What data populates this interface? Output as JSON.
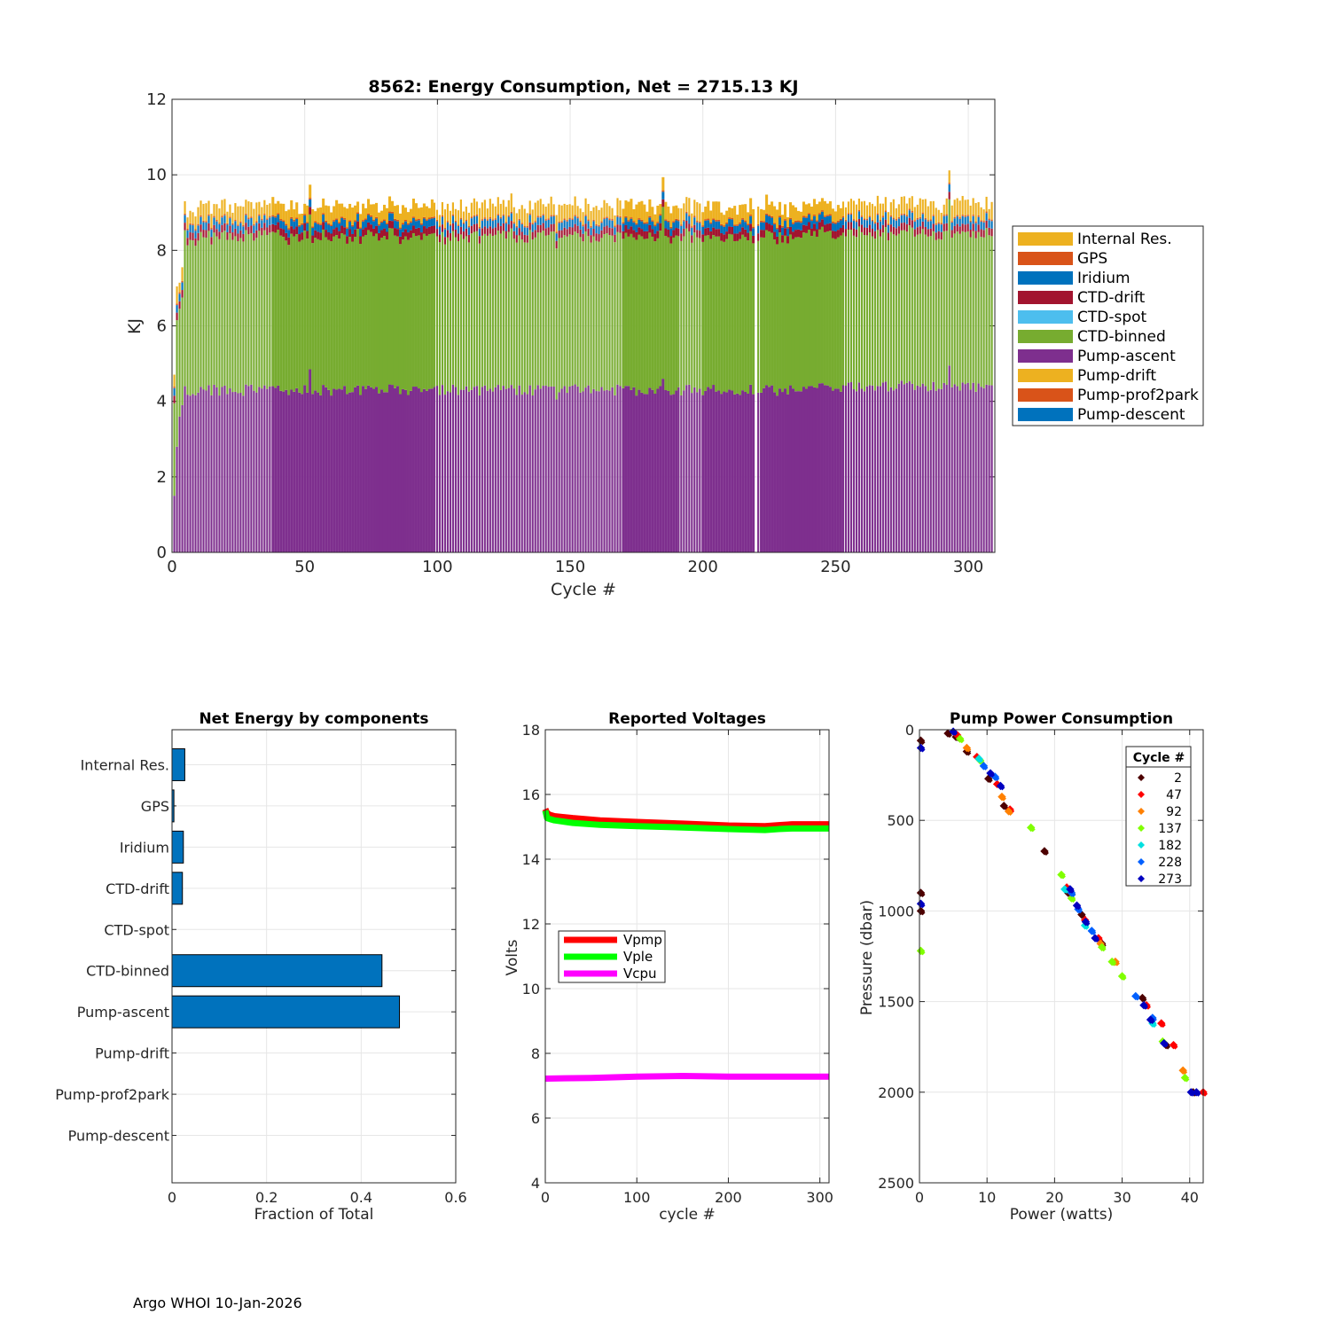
{
  "footer": "Argo WHOI 10-Jan-2026",
  "chart_data": [
    {
      "id": "energy",
      "type": "bar",
      "stacked": true,
      "title": "8562: Energy Consumption,  Net = 2715.13 KJ",
      "xlabel": "Cycle #",
      "ylabel": "KJ",
      "xlim": [
        0,
        310
      ],
      "ylim": [
        0,
        12
      ],
      "xticks": [
        0,
        50,
        100,
        150,
        200,
        250,
        300
      ],
      "yticks": [
        0,
        2,
        4,
        6,
        8,
        10,
        12
      ],
      "grid": true,
      "legend_position": "right",
      "n_cycles": 309,
      "series": [
        {
          "name": "Internal Res.",
          "color": "#EDB120",
          "typical": 0.3
        },
        {
          "name": "GPS",
          "color": "#D95319",
          "typical": 0.04
        },
        {
          "name": "Iridium",
          "color": "#0072BD",
          "typical": 0.2
        },
        {
          "name": "CTD-drift",
          "color": "#A2142F",
          "typical": 0.2
        },
        {
          "name": "CTD-spot",
          "color": "#4DBEEE",
          "typical": 0.0
        },
        {
          "name": "CTD-binned",
          "color": "#77AC30",
          "typical": 4.05
        },
        {
          "name": "Pump-ascent",
          "color": "#7E2F8E",
          "typical": 4.4
        },
        {
          "name": "Pump-drift",
          "color": "#EDB120",
          "typical": 0.0
        },
        {
          "name": "Pump-prof2park",
          "color": "#D95319",
          "typical": 0.0
        },
        {
          "name": "Pump-descent",
          "color": "#0072BD",
          "typical": 0.0
        }
      ],
      "highlights": [
        {
          "cycle": 1,
          "total": 4.7,
          "pump_ascent": 1.5
        },
        {
          "cycle": 2,
          "total": 6.9,
          "pump_ascent": 2.8
        },
        {
          "cycle": 3,
          "total": 7.2,
          "pump_ascent": 3.6
        },
        {
          "cycle": 4,
          "total": 7.5,
          "pump_ascent": 3.9
        },
        {
          "cycle": 52,
          "total": 9.7,
          "pump_ascent": 4.85
        },
        {
          "cycle": 145,
          "total": 8.8,
          "pump_ascent": 4.05
        },
        {
          "cycle": 185,
          "total": 9.9,
          "pump_ascent": 4.6
        },
        {
          "cycle": 293,
          "total": 10.1,
          "pump_ascent": 4.95
        }
      ]
    },
    {
      "id": "components",
      "type": "bar",
      "orientation": "horizontal",
      "title": "Net Energy by components",
      "xlabel": "Fraction of Total",
      "xlim": [
        0,
        0.6
      ],
      "xticks": [
        0,
        0.2,
        0.4,
        0.6
      ],
      "xtick_labels": [
        "0",
        "0.2",
        "0.4",
        "0.6"
      ],
      "categories": [
        "Internal Res.",
        "GPS",
        "Iridium",
        "CTD-drift",
        "CTD-spot",
        "CTD-binned",
        "Pump-ascent",
        "Pump-drift",
        "Pump-prof2park",
        "Pump-descent"
      ],
      "values": [
        0.027,
        0.004,
        0.024,
        0.022,
        0.0,
        0.444,
        0.481,
        0.0,
        0.0,
        0.0
      ],
      "bar_color": "#0072BD",
      "grid": true
    },
    {
      "id": "voltages",
      "type": "line",
      "title": "Reported Voltages",
      "xlabel": "cycle #",
      "ylabel": "Volts",
      "xlim": [
        0,
        310
      ],
      "ylim": [
        4,
        18
      ],
      "xticks": [
        0,
        100,
        200,
        300
      ],
      "yticks": [
        4,
        6,
        8,
        10,
        12,
        14,
        16,
        18
      ],
      "legend_position": "center-left",
      "grid": true,
      "series": [
        {
          "name": "Vpmp",
          "color": "#FF0000",
          "x": [
            0,
            2,
            5,
            10,
            30,
            60,
            100,
            150,
            200,
            240,
            255,
            270,
            300,
            310
          ],
          "y": [
            15.55,
            15.42,
            15.37,
            15.33,
            15.27,
            15.2,
            15.15,
            15.1,
            15.04,
            15.02,
            15.05,
            15.08,
            15.08,
            15.08
          ]
        },
        {
          "name": "Vple",
          "color": "#00FF00",
          "x": [
            0,
            2,
            5,
            10,
            30,
            60,
            100,
            150,
            200,
            240,
            255,
            270,
            300,
            310
          ],
          "y": [
            15.5,
            15.27,
            15.24,
            15.2,
            15.12,
            15.06,
            15.02,
            14.98,
            14.93,
            14.9,
            14.93,
            14.95,
            14.95,
            14.95
          ]
        },
        {
          "name": "Vcpu",
          "color": "#FF00FF",
          "x": [
            0,
            50,
            100,
            150,
            200,
            250,
            300,
            310
          ],
          "y": [
            7.22,
            7.24,
            7.28,
            7.3,
            7.28,
            7.28,
            7.28,
            7.28
          ]
        }
      ]
    },
    {
      "id": "pump",
      "type": "scatter",
      "title": "Pump Power Consumption",
      "xlabel": "Power (watts)",
      "ylabel": "Pressure (dbar)",
      "xlim": [
        0,
        42
      ],
      "ylim": [
        0,
        2500
      ],
      "y_reversed": true,
      "xticks": [
        0,
        10,
        20,
        30,
        40
      ],
      "yticks": [
        0,
        500,
        1000,
        1500,
        2000,
        2500
      ],
      "grid": true,
      "legend_title": "Cycle #",
      "legend_position": "top-right",
      "series": [
        {
          "name": "2",
          "color": "#4D0000",
          "x": [
            0.2,
            0.2,
            0.2,
            4.2,
            5.4,
            7.0,
            10.2,
            12.5,
            18.5,
            22.0,
            24.0,
            27.0,
            33.0,
            36.5,
            40.5
          ],
          "y": [
            60,
            900,
            1000,
            20,
            40,
            120,
            270,
            420,
            670,
            900,
            1020,
            1180,
            1480,
            1740,
            2000
          ]
        },
        {
          "name": "47",
          "color": "#FF0000",
          "x": [
            5.6,
            8.5,
            11.5,
            13.4,
            21.8,
            24.5,
            26.5,
            33.6,
            35.8,
            37.6,
            42.0
          ],
          "y": [
            30,
            150,
            300,
            440,
            870,
            1050,
            1150,
            1520,
            1620,
            1740,
            2000
          ]
        },
        {
          "name": "92",
          "color": "#FF8000",
          "x": [
            7.0,
            12.2,
            13.2,
            22.5,
            26.8,
            29.0,
            39.0
          ],
          "y": [
            100,
            370,
            450,
            900,
            1180,
            1280,
            1880
          ]
        },
        {
          "name": "137",
          "color": "#80FF00",
          "x": [
            0.2,
            6.0,
            9.0,
            16.5,
            21.0,
            22.5,
            27.0,
            28.5,
            30.0,
            36.0,
            39.3
          ],
          "y": [
            1220,
            50,
            170,
            540,
            800,
            930,
            1200,
            1280,
            1360,
            1720,
            1920
          ]
        },
        {
          "name": "182",
          "color": "#00E0E0",
          "x": [
            8.8,
            21.5,
            24.5,
            34.5
          ],
          "y": [
            160,
            880,
            1080,
            1620
          ]
        },
        {
          "name": "228",
          "color": "#0060FF",
          "x": [
            9.5,
            11.2,
            22.5,
            23.5,
            25.5,
            32.0,
            34.5
          ],
          "y": [
            200,
            260,
            900,
            990,
            1110,
            1470,
            1590
          ]
        },
        {
          "name": "273",
          "color": "#0000C0",
          "x": [
            0.2,
            0.2,
            5.0,
            10.5,
            12.0,
            22.3,
            23.3,
            24.6,
            26.0,
            33.2,
            34.2,
            36.2,
            40.2,
            41.0
          ],
          "y": [
            100,
            960,
            10,
            240,
            310,
            880,
            970,
            1060,
            1150,
            1520,
            1600,
            1730,
            2000,
            2000
          ]
        }
      ]
    }
  ]
}
